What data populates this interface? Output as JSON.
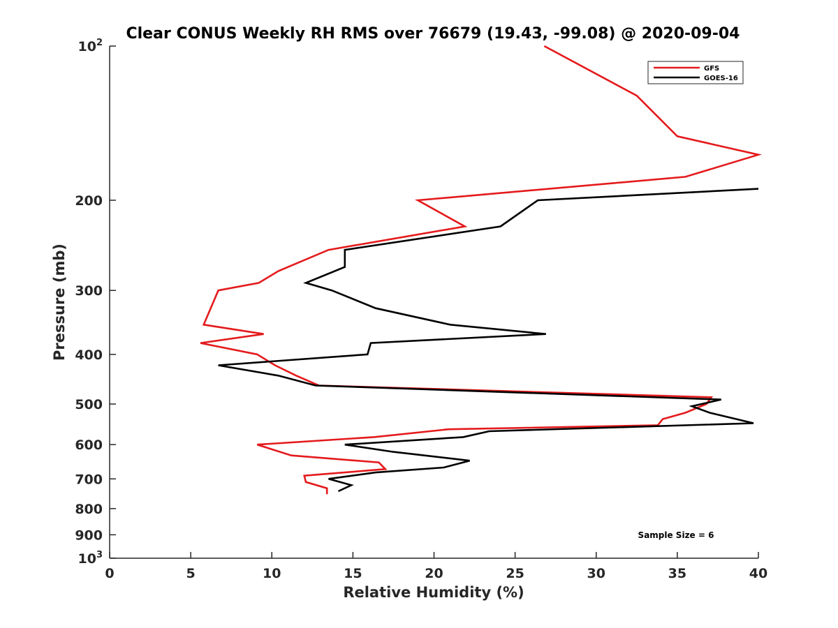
{
  "chart_data": {
    "type": "line",
    "title": "Clear CONUS Weekly RH RMS over 76679 (19.43, -99.08) @ 2020-09-04",
    "xlabel": "Relative Humidity (%)",
    "ylabel": "Pressure (mb)",
    "xlim": [
      0,
      40
    ],
    "ylim": [
      100,
      1000
    ],
    "y_scale": "log",
    "y_reversed": true,
    "grid": false,
    "legend_position": "top-right",
    "x_ticks": [
      0,
      5,
      10,
      15,
      20,
      25,
      30,
      35,
      40
    ],
    "x_tick_labels": [
      "0",
      "5",
      "10",
      "15",
      "20",
      "25",
      "30",
      "35",
      "40"
    ],
    "y_ticks": [
      {
        "value": 100,
        "base": "10",
        "exp": "2"
      },
      {
        "value": 200,
        "label": "200"
      },
      {
        "value": 300,
        "label": "300"
      },
      {
        "value": 400,
        "label": "400"
      },
      {
        "value": 500,
        "label": "500"
      },
      {
        "value": 600,
        "label": "600"
      },
      {
        "value": 700,
        "label": "700"
      },
      {
        "value": 800,
        "label": "800"
      },
      {
        "value": 900,
        "label": "900"
      },
      {
        "value": 1000,
        "base": "10",
        "exp": "3"
      }
    ],
    "series": [
      {
        "name": "GFS",
        "color": "#e41a1c",
        "points": [
          [
            26.8,
            100
          ],
          [
            32.5,
            125
          ],
          [
            35.0,
            150
          ],
          [
            40.0,
            163
          ],
          [
            35.5,
            180
          ],
          [
            19.0,
            200
          ],
          [
            21.9,
            225
          ],
          [
            13.5,
            250
          ],
          [
            10.4,
            275
          ],
          [
            9.2,
            290
          ],
          [
            6.7,
            300
          ],
          [
            5.8,
            350
          ],
          [
            9.5,
            365
          ],
          [
            5.6,
            380
          ],
          [
            9.1,
            400
          ],
          [
            10.2,
            420
          ],
          [
            11.5,
            440
          ],
          [
            12.9,
            460
          ],
          [
            37.1,
            485
          ],
          [
            36.8,
            500
          ],
          [
            35.5,
            520
          ],
          [
            34.1,
            535
          ],
          [
            33.8,
            550
          ],
          [
            20.9,
            560
          ],
          [
            16.3,
            580
          ],
          [
            9.1,
            600
          ],
          [
            11.2,
            630
          ],
          [
            16.6,
            650
          ],
          [
            17.0,
            670
          ],
          [
            12.0,
            690
          ],
          [
            12.1,
            710
          ],
          [
            13.4,
            730
          ],
          [
            13.4,
            750
          ]
        ]
      },
      {
        "name": "GOES-16",
        "color": "#000000",
        "points": [
          [
            40.0,
            190
          ],
          [
            26.4,
            200
          ],
          [
            24.1,
            225
          ],
          [
            14.5,
            250
          ],
          [
            14.5,
            270
          ],
          [
            12.1,
            290
          ],
          [
            13.7,
            300
          ],
          [
            16.4,
            325
          ],
          [
            21.0,
            350
          ],
          [
            26.9,
            365
          ],
          [
            16.1,
            380
          ],
          [
            15.9,
            400
          ],
          [
            6.7,
            420
          ],
          [
            10.4,
            440
          ],
          [
            12.7,
            460
          ],
          [
            37.7,
            490
          ],
          [
            35.9,
            505
          ],
          [
            37.0,
            520
          ],
          [
            39.7,
            545
          ],
          [
            23.4,
            565
          ],
          [
            21.8,
            580
          ],
          [
            14.5,
            600
          ],
          [
            17.5,
            620
          ],
          [
            22.2,
            645
          ],
          [
            20.6,
            665
          ],
          [
            16.4,
            680
          ],
          [
            13.5,
            700
          ],
          [
            14.9,
            720
          ],
          [
            14.1,
            740
          ]
        ]
      }
    ],
    "annotation": "Sample Size = 6"
  }
}
